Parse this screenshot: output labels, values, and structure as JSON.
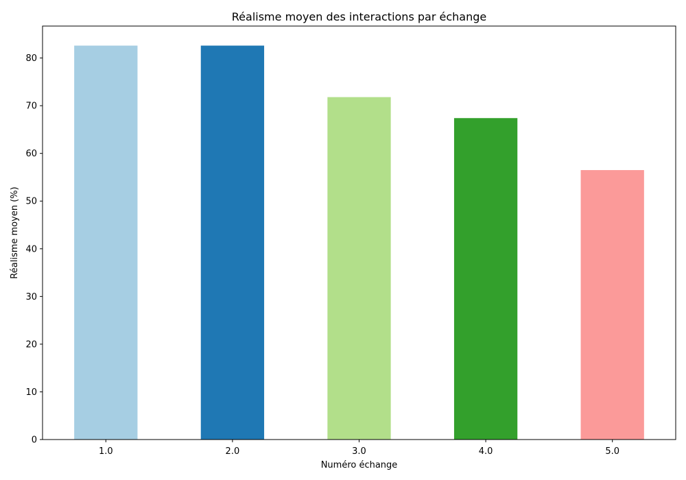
{
  "chart_data": {
    "type": "bar",
    "title": "Réalisme moyen des interactions par échange",
    "xlabel": "Numéro échange",
    "ylabel": "Réalisme moyen (%)",
    "categories": [
      "1.0",
      "2.0",
      "3.0",
      "4.0",
      "5.0"
    ],
    "values": [
      82.6,
      82.6,
      71.8,
      67.4,
      56.5
    ],
    "colors": [
      "#a6cee3",
      "#1f78b4",
      "#b2df8a",
      "#33a02c",
      "#fb9a99"
    ],
    "ylim": [
      0,
      86.7
    ],
    "yticks": [
      0,
      10,
      20,
      30,
      40,
      50,
      60,
      70,
      80
    ],
    "grid": false,
    "legend": "none"
  }
}
